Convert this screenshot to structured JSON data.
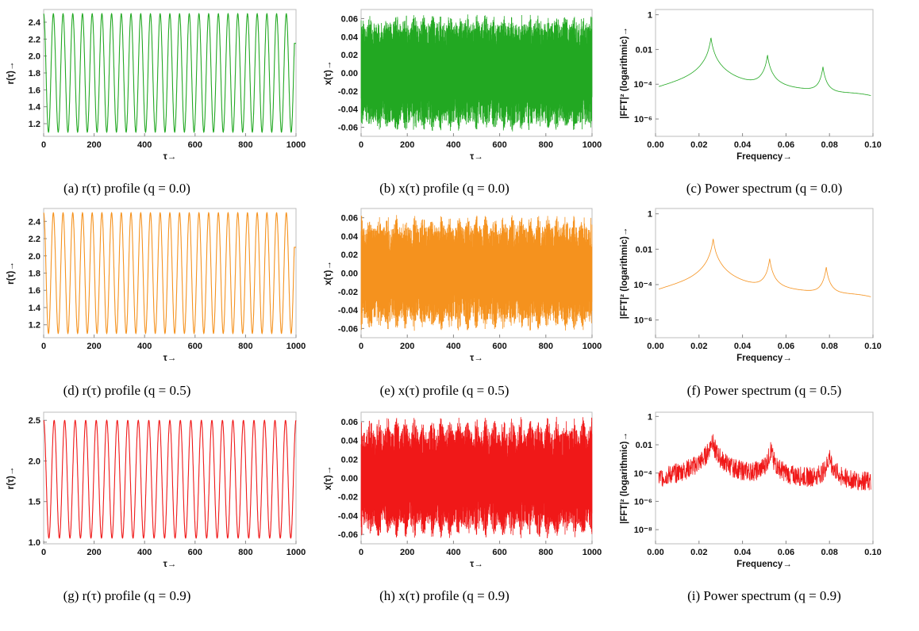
{
  "figure": {
    "panels": [
      {
        "caption": "(a)  r(τ) profile (q = 0.0)"
      },
      {
        "caption": "(b)  x(τ) profile (q = 0.0)"
      },
      {
        "caption": "(c)  Power spectrum (q = 0.0)"
      },
      {
        "caption": "(d)  r(τ) profile (q = 0.5)"
      },
      {
        "caption": "(e)  x(τ) profile (q = 0.5)"
      },
      {
        "caption": "(f)  Power spectrum (q = 0.5)"
      },
      {
        "caption": "(g)  r(τ) profile (q = 0.9)"
      },
      {
        "caption": "(h)  x(τ) profile (q = 0.9)"
      },
      {
        "caption": "(i)  Power spectrum (q = 0.9)"
      }
    ]
  },
  "chart_data": [
    {
      "type": "line",
      "q": 0.0,
      "color": "#22a822",
      "xlabel": "τ→",
      "ylabel": "r(τ)→",
      "xlim": [
        0,
        1000
      ],
      "ylim": [
        1.05,
        2.55
      ],
      "xticks": [
        "0",
        "200",
        "400",
        "600",
        "800",
        "1000"
      ],
      "yticks": [
        "1.2",
        "1.4",
        "1.6",
        "1.8",
        "2.0",
        "2.2",
        "2.4"
      ],
      "yticks_values": [
        1.2,
        1.4,
        1.6,
        1.8,
        2.0,
        2.2,
        2.4
      ],
      "series": [
        {
          "r_min": 1.1,
          "r_max": 2.5,
          "cycles": 26,
          "end_value": 2.15
        }
      ]
    },
    {
      "type": "line",
      "q": 0.0,
      "color": "#22a822",
      "xlabel": "τ→",
      "ylabel": "x(τ)→",
      "xlim": [
        0,
        1000
      ],
      "ylim": [
        -0.07,
        0.07
      ],
      "xticks": [
        "0",
        "200",
        "400",
        "600",
        "800",
        "1000"
      ],
      "yticks": [
        "-0.06",
        "-0.04",
        "-0.02",
        "0.00",
        "0.02",
        "0.04",
        "0.06"
      ],
      "yticks_values": [
        -0.06,
        -0.04,
        -0.02,
        0.0,
        0.02,
        0.04,
        0.06
      ],
      "series": [
        {
          "amplitude_max": 0.065,
          "amplitude_min": 0.055
        }
      ]
    },
    {
      "type": "line",
      "q": 0.0,
      "color": "#22a822",
      "log_y": true,
      "xlabel": "Frequency→",
      "ylabel": "|FFT|² (logarithmic)→",
      "xlim": [
        0,
        0.1
      ],
      "ylim_exp": [
        -7,
        0.3
      ],
      "xticks": [
        "0.00",
        "0.02",
        "0.04",
        "0.06",
        "0.08",
        "0.10"
      ],
      "yticks": [
        "1",
        "0.01",
        "10⁻⁴",
        "10⁻⁶"
      ],
      "yticks_exp": [
        0,
        -2,
        -4,
        -6
      ],
      "series": [
        {
          "peaks": [
            {
              "f": 0.0255,
              "power": 0.05
            },
            {
              "f": 0.0515,
              "power": 0.005
            },
            {
              "f": 0.077,
              "power": 0.001
            }
          ],
          "floor": 1e-05
        }
      ]
    },
    {
      "type": "line",
      "q": 0.5,
      "color": "#f5921e",
      "xlabel": "τ→",
      "ylabel": "r(τ)→",
      "xlim": [
        0,
        1000
      ],
      "ylim": [
        1.05,
        2.55
      ],
      "xticks": [
        "0",
        "200",
        "400",
        "600",
        "800",
        "1000"
      ],
      "yticks": [
        "1.2",
        "1.4",
        "1.6",
        "1.8",
        "2.0",
        "2.2",
        "2.4"
      ],
      "yticks_values": [
        1.2,
        1.4,
        1.6,
        1.8,
        2.0,
        2.2,
        2.4
      ],
      "series": [
        {
          "r_min": 1.1,
          "r_max": 2.5,
          "cycles": 26,
          "end_value": 2.1
        }
      ]
    },
    {
      "type": "line",
      "q": 0.5,
      "color": "#f5921e",
      "xlabel": "τ→",
      "ylabel": "x(τ)→",
      "xlim": [
        0,
        1000
      ],
      "ylim": [
        -0.07,
        0.07
      ],
      "xticks": [
        "0",
        "200",
        "400",
        "600",
        "800",
        "1000"
      ],
      "yticks": [
        "-0.06",
        "-0.04",
        "-0.02",
        "0.00",
        "0.02",
        "0.04",
        "0.06"
      ],
      "yticks_values": [
        -0.06,
        -0.04,
        -0.02,
        0.0,
        0.02,
        0.04,
        0.06
      ],
      "series": [
        {
          "amplitude_max": 0.063,
          "amplitude_min": 0.05
        }
      ]
    },
    {
      "type": "line",
      "q": 0.5,
      "color": "#f5921e",
      "log_y": true,
      "xlabel": "Frequency→",
      "ylabel": "|FFT|² (logarithmic)→",
      "xlim": [
        0,
        0.1
      ],
      "ylim_exp": [
        -7,
        0.3
      ],
      "xticks": [
        "0.00",
        "0.02",
        "0.04",
        "0.06",
        "0.08",
        "0.10"
      ],
      "yticks": [
        "1",
        "0.01",
        "10⁻⁴",
        "10⁻⁶"
      ],
      "yticks_exp": [
        0,
        -2,
        -4,
        -6
      ],
      "series": [
        {
          "peaks": [
            {
              "f": 0.0265,
              "power": 0.04
            },
            {
              "f": 0.0525,
              "power": 0.003
            },
            {
              "f": 0.0785,
              "power": 0.001
            }
          ],
          "floor": 1e-05
        }
      ]
    },
    {
      "type": "line",
      "q": 0.9,
      "color": "#f01818",
      "xlabel": "τ→",
      "ylabel": "r(τ)→",
      "xlim": [
        0,
        1000
      ],
      "ylim": [
        0.98,
        2.6
      ],
      "xticks": [
        "0",
        "200",
        "400",
        "600",
        "800",
        "1000"
      ],
      "yticks": [
        "1.0",
        "1.5",
        "2.0",
        "2.5"
      ],
      "yticks_values": [
        1.0,
        1.5,
        2.0,
        2.5
      ],
      "series": [
        {
          "r_min": 1.05,
          "r_max": 2.5,
          "cycles": 24,
          "end_value": 2.5
        }
      ]
    },
    {
      "type": "line",
      "q": 0.9,
      "color": "#f01818",
      "xlabel": "τ→",
      "ylabel": "x(τ)→",
      "xlim": [
        0,
        1000
      ],
      "ylim": [
        -0.07,
        0.07
      ],
      "xticks": [
        "0",
        "200",
        "400",
        "600",
        "800",
        "1000"
      ],
      "yticks": [
        "-0.06",
        "-0.04",
        "-0.02",
        "0.00",
        "0.02",
        "0.04",
        "0.06"
      ],
      "yticks_values": [
        -0.06,
        -0.04,
        -0.02,
        0.0,
        0.02,
        0.04,
        0.06
      ],
      "series": [
        {
          "amplitude_max": 0.065,
          "amplitude_min": 0.05
        }
      ]
    },
    {
      "type": "line",
      "q": 0.9,
      "color": "#f01818",
      "log_y": true,
      "xlabel": "Frequency→",
      "ylabel": "|FFT|² (logarithmic)→",
      "xlim": [
        0,
        0.1
      ],
      "ylim_exp": [
        -9,
        0.3
      ],
      "xticks": [
        "0.00",
        "0.02",
        "0.04",
        "0.06",
        "0.08",
        "0.10"
      ],
      "yticks": [
        "1",
        "0.01",
        "10⁻⁴",
        "10⁻⁶",
        "10⁻⁸"
      ],
      "yticks_exp": [
        0,
        -2,
        -4,
        -6,
        -8
      ],
      "series": [
        {
          "peaks": [
            {
              "f": 0.026,
              "power": 0.03
            },
            {
              "f": 0.053,
              "power": 0.005
            },
            {
              "f": 0.08,
              "power": 0.002
            }
          ],
          "floor": 1e-05
        }
      ]
    }
  ]
}
